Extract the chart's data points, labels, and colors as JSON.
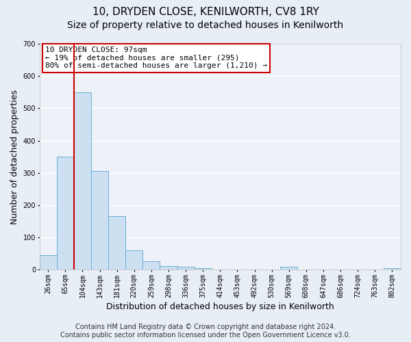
{
  "title": "10, DRYDEN CLOSE, KENILWORTH, CV8 1RY",
  "subtitle": "Size of property relative to detached houses in Kenilworth",
  "xlabel": "Distribution of detached houses by size in Kenilworth",
  "ylabel": "Number of detached properties",
  "bin_labels": [
    "26sqm",
    "65sqm",
    "104sqm",
    "143sqm",
    "181sqm",
    "220sqm",
    "259sqm",
    "298sqm",
    "336sqm",
    "375sqm",
    "414sqm",
    "453sqm",
    "492sqm",
    "530sqm",
    "569sqm",
    "608sqm",
    "647sqm",
    "686sqm",
    "724sqm",
    "763sqm",
    "802sqm"
  ],
  "bar_values": [
    45,
    350,
    550,
    305,
    165,
    60,
    25,
    12,
    8,
    5,
    0,
    0,
    0,
    0,
    8,
    0,
    0,
    0,
    0,
    0,
    5
  ],
  "bar_color": "#cde0f2",
  "bar_edgecolor": "#6aaed6",
  "vline_color": "#cc0000",
  "annotation_text": "10 DRYDEN CLOSE: 97sqm\n← 19% of detached houses are smaller (295)\n80% of semi-detached houses are larger (1,210) →",
  "annotation_box_color": "#cc0000",
  "ylim": [
    0,
    700
  ],
  "yticks": [
    0,
    100,
    200,
    300,
    400,
    500,
    600,
    700
  ],
  "footer": "Contains HM Land Registry data © Crown copyright and database right 2024.\nContains public sector information licensed under the Open Government Licence v3.0.",
  "bg_color": "#e8eef6",
  "plot_bg_color": "#eef2f8",
  "grid_color": "#ffffff",
  "title_fontsize": 11,
  "subtitle_fontsize": 10,
  "label_fontsize": 9,
  "tick_fontsize": 7,
  "footer_fontsize": 7,
  "annotation_fontsize": 8
}
